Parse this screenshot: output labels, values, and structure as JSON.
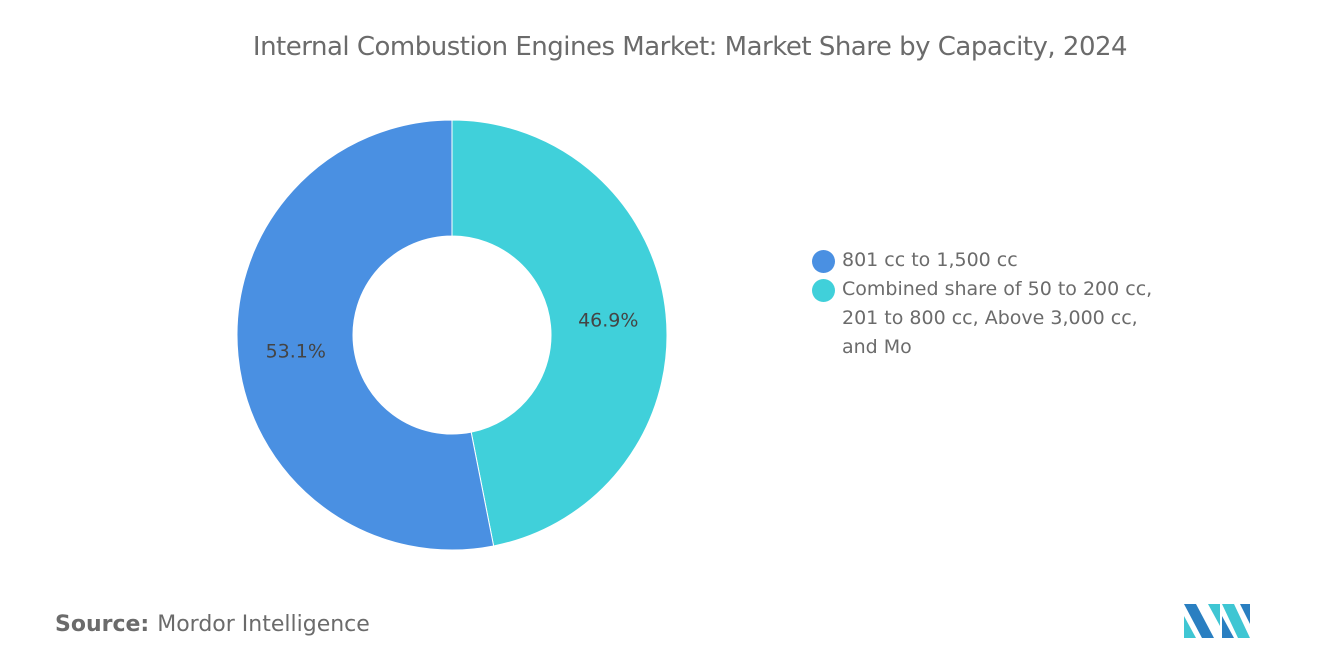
{
  "title": "Internal Combustion Engines Market: Market Share by Capacity, 2024",
  "chart_data": {
    "type": "pie",
    "style": "donut",
    "title": "Internal Combustion Engines Market: Market Share by Capacity, 2024",
    "categories": [
      "801 cc to 1,500 cc",
      "Combined share of 50 to 200 cc, 201 to 800 cc, Above 3,000 cc, and Mo"
    ],
    "values": [
      53.1,
      46.9
    ],
    "labels": [
      "53.1%",
      "46.9%"
    ],
    "colors": [
      "#4a90e2",
      "#40d0da"
    ],
    "legend_placement": "right"
  },
  "source": {
    "label": "Source:",
    "value": "Mordor Intelligence"
  },
  "logo": {
    "text": "Mordor Intelligence",
    "colors": [
      "#2a7fc1",
      "#3fc6d3"
    ]
  }
}
